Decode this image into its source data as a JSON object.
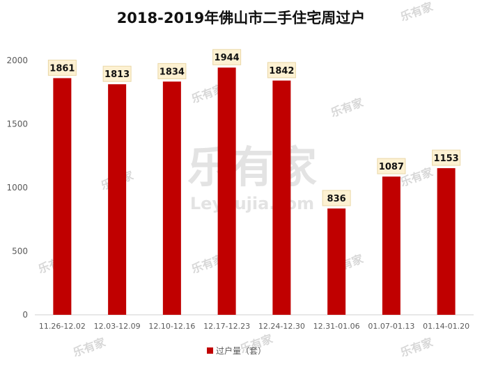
{
  "chart_data": {
    "type": "bar",
    "title": "2018-2019年佛山市二手住宅周过户",
    "categories": [
      "11.26-12.02",
      "12.03-12.09",
      "12.10-12.16",
      "12.17-12.23",
      "12.24-12.30",
      "12.31-01.06",
      "01.07-01.13",
      "01.14-01.20"
    ],
    "series": [
      {
        "name": "过户量（套）",
        "values": [
          1861,
          1813,
          1834,
          1944,
          1842,
          836,
          1087,
          1153
        ],
        "color": "#c00000"
      }
    ],
    "y_ticks": [
      0,
      500,
      1000,
      1500,
      2000
    ],
    "ylim": [
      0,
      2000
    ],
    "legend_position": "bottom-center",
    "grid": false,
    "label_bg": "#fdf1d2"
  },
  "watermark": {
    "brand": "乐有家",
    "url": "Leyoujia.com"
  }
}
